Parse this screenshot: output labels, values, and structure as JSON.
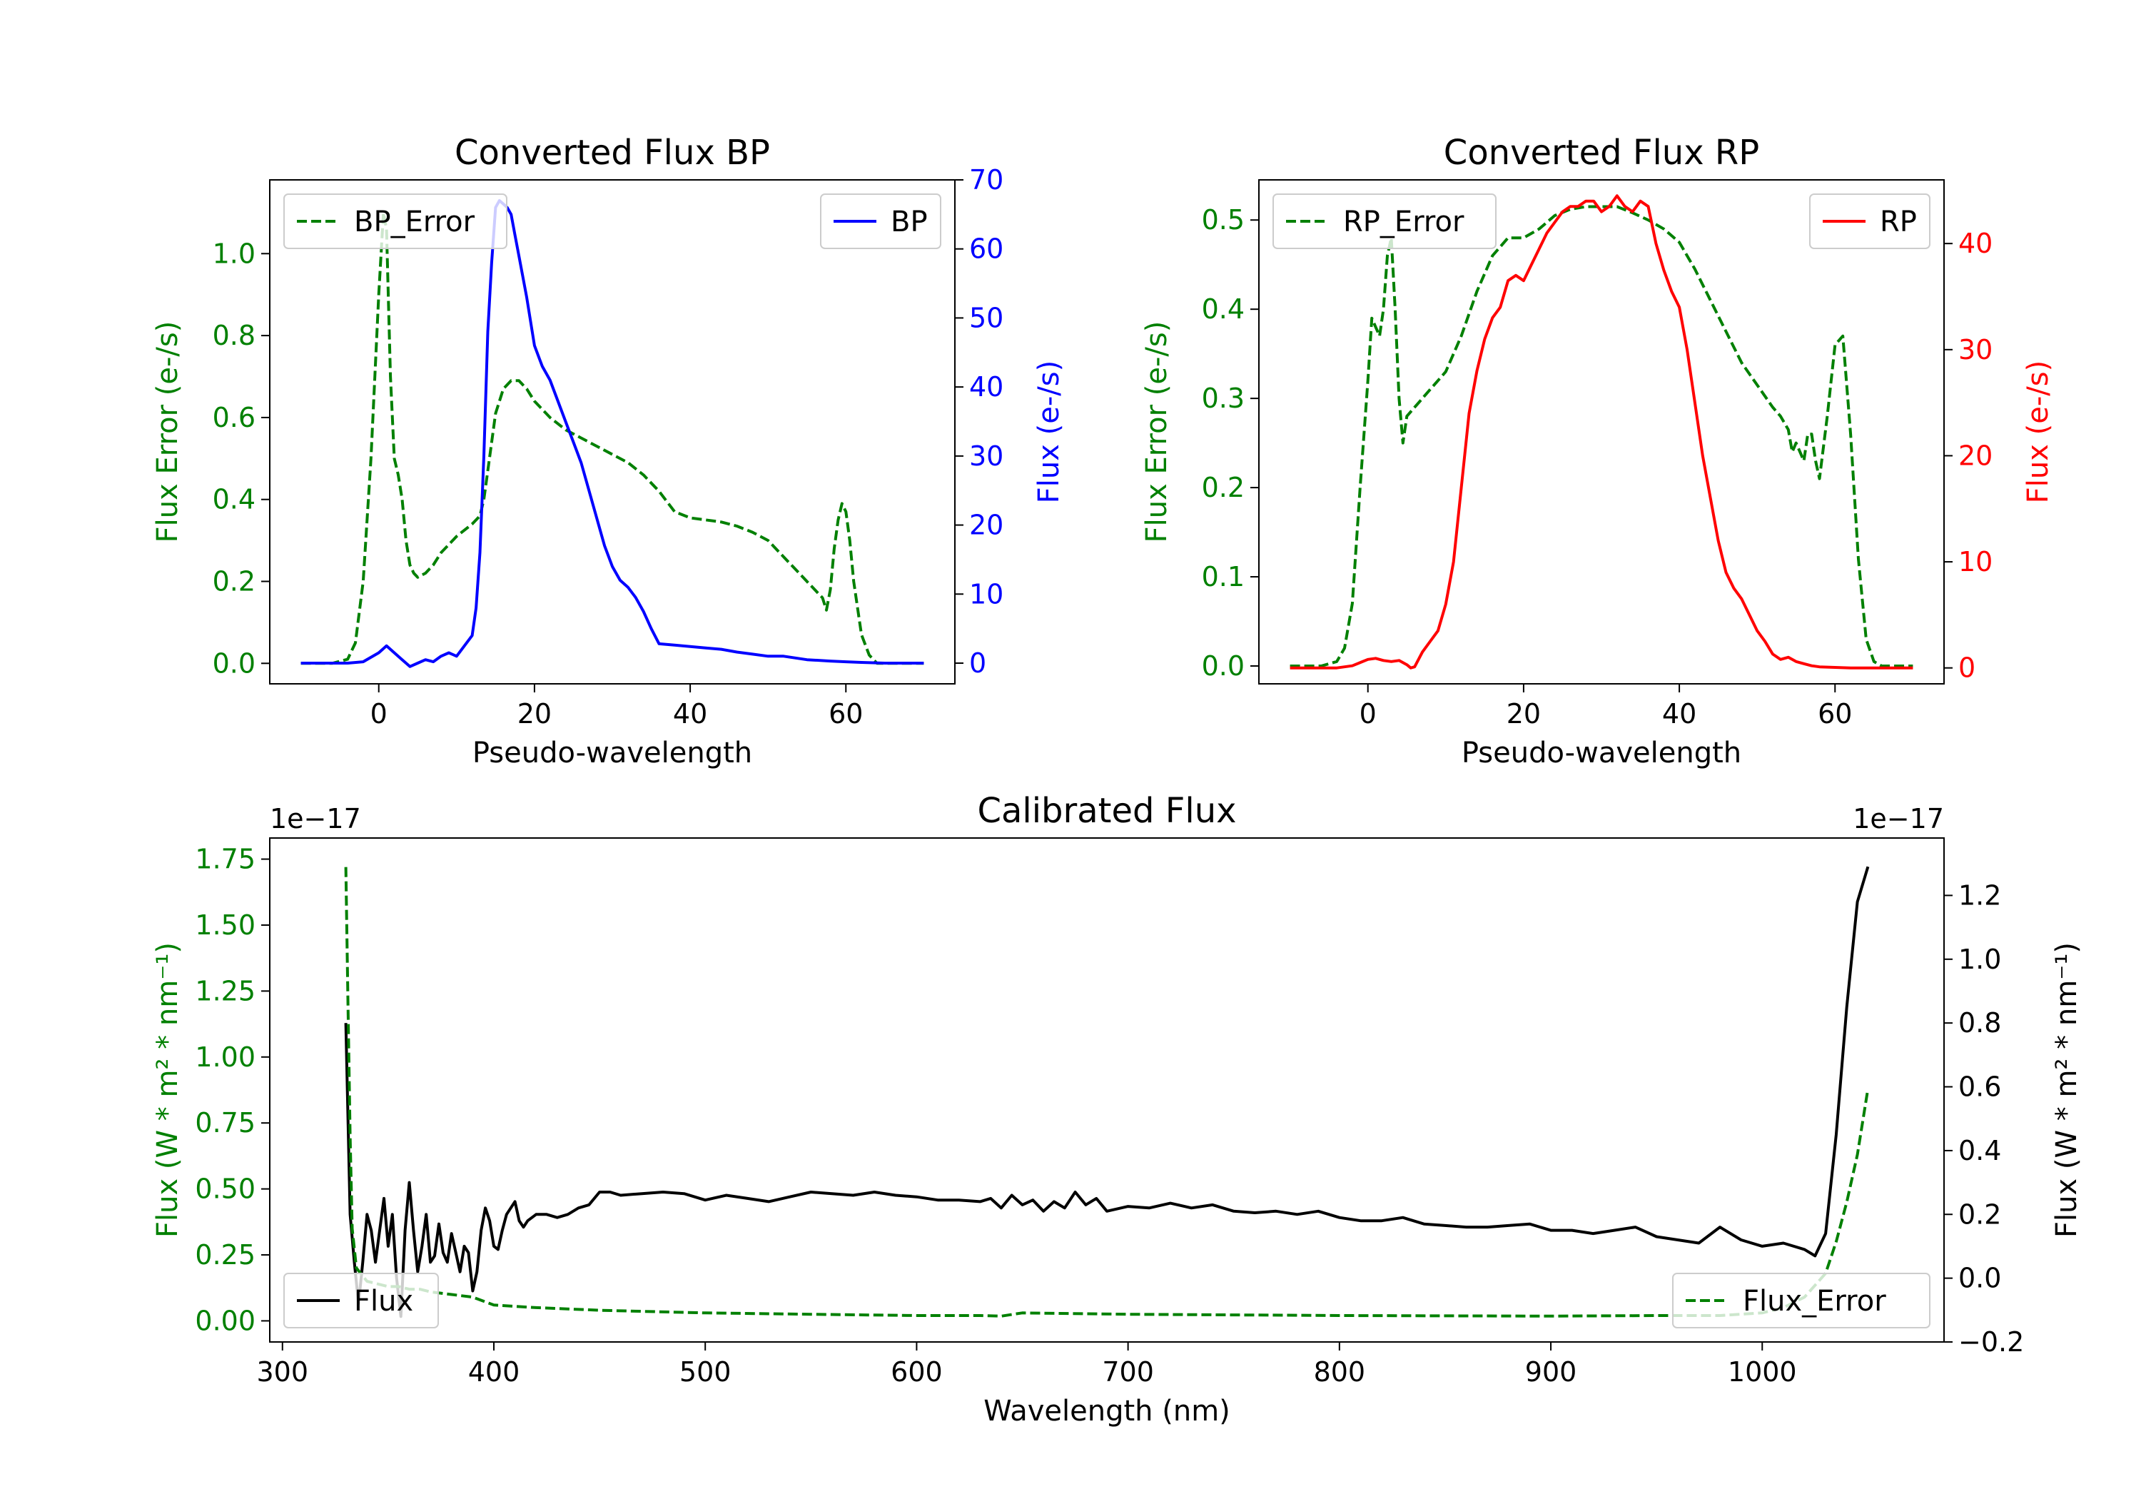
{
  "chart_data": [
    {
      "type": "line",
      "title": "Converted Flux BP",
      "xlabel": "Pseudo-wavelength",
      "xlim": [
        -14,
        74
      ],
      "xticks": [
        0,
        20,
        40,
        60
      ],
      "left_axis": {
        "label": "Flux Error (e-/s)",
        "color": "#008000",
        "ylim": [
          -0.05,
          1.18
        ],
        "ticks": [
          0.0,
          0.2,
          0.4,
          0.6,
          0.8,
          1.0
        ],
        "tick_labels": [
          "0.0",
          "0.2",
          "0.4",
          "0.6",
          "0.8",
          "1.0"
        ]
      },
      "right_axis": {
        "label": "Flux (e-/s)",
        "color": "#0000ff",
        "ylim": [
          -3,
          70
        ],
        "ticks": [
          0,
          10,
          20,
          30,
          40,
          50,
          60,
          70
        ],
        "tick_labels": [
          "0",
          "10",
          "20",
          "30",
          "40",
          "50",
          "60",
          "70"
        ]
      },
      "series": [
        {
          "name": "BP_Error",
          "axis": "left",
          "color": "#008000",
          "style": "dashed",
          "x": [
            -10,
            -6,
            -4,
            -3,
            -2,
            -1,
            0,
            0.6,
            1,
            1.5,
            2,
            2.5,
            3,
            3.5,
            4,
            4.5,
            5,
            5.5,
            6,
            7,
            8,
            10,
            12,
            13,
            13.5,
            14,
            15,
            16,
            17,
            18,
            19,
            20,
            22,
            24,
            26,
            28,
            30,
            32,
            34,
            36,
            38,
            40,
            42,
            44,
            46,
            48,
            50,
            52,
            54,
            56,
            57,
            57.5,
            58,
            58.5,
            59,
            59.5,
            60,
            60.5,
            61,
            62,
            63,
            64,
            65,
            66,
            68,
            70
          ],
          "y": [
            0.0,
            0.0,
            0.01,
            0.05,
            0.2,
            0.5,
            0.9,
            1.1,
            1.06,
            0.7,
            0.5,
            0.46,
            0.4,
            0.3,
            0.24,
            0.22,
            0.21,
            0.215,
            0.22,
            0.24,
            0.27,
            0.31,
            0.34,
            0.36,
            0.4,
            0.47,
            0.61,
            0.67,
            0.69,
            0.69,
            0.67,
            0.64,
            0.6,
            0.57,
            0.55,
            0.53,
            0.51,
            0.49,
            0.46,
            0.42,
            0.37,
            0.355,
            0.35,
            0.345,
            0.335,
            0.32,
            0.3,
            0.26,
            0.22,
            0.18,
            0.16,
            0.13,
            0.18,
            0.28,
            0.35,
            0.39,
            0.37,
            0.3,
            0.2,
            0.07,
            0.02,
            0.0,
            0.0,
            0.0,
            0.0,
            0.0
          ]
        },
        {
          "name": "BP",
          "axis": "right",
          "color": "#0000ff",
          "style": "solid",
          "x": [
            -10,
            -4,
            -2,
            0,
            1,
            2,
            3,
            4,
            5,
            6,
            7,
            8,
            9,
            10,
            11,
            12,
            12.5,
            13,
            13.5,
            14,
            14.5,
            15,
            15.5,
            16,
            16.5,
            17,
            17.5,
            18,
            19,
            20,
            21,
            22,
            23,
            24,
            25,
            26,
            27,
            28,
            29,
            30,
            31,
            32,
            33,
            34,
            35,
            36,
            38,
            40,
            42,
            44,
            46,
            48,
            50,
            52,
            55,
            58,
            60,
            62,
            65,
            70
          ],
          "y": [
            0,
            0,
            0.2,
            1.5,
            2.5,
            1.5,
            0.5,
            -0.5,
            0,
            0.5,
            0.2,
            1.0,
            1.5,
            1.0,
            2.5,
            4,
            8,
            16,
            30,
            48,
            58,
            66,
            67,
            66.5,
            66,
            65,
            62,
            59,
            53,
            46,
            43,
            41,
            38,
            35,
            32,
            29,
            25,
            21,
            17,
            14,
            12,
            11,
            9.5,
            7.5,
            5,
            2.8,
            2.6,
            2.4,
            2.2,
            2.0,
            1.6,
            1.3,
            1.0,
            1.0,
            0.5,
            0.3,
            0.2,
            0.1,
            0,
            0
          ]
        }
      ],
      "legend": [
        {
          "label": "BP_Error",
          "placement": "upper-left"
        },
        {
          "label": "BP",
          "placement": "upper-right"
        }
      ]
    },
    {
      "type": "line",
      "title": "Converted Flux RP",
      "xlabel": "Pseudo-wavelength",
      "xlim": [
        -14,
        74
      ],
      "xticks": [
        0,
        20,
        40,
        60
      ],
      "left_axis": {
        "label": "Flux Error (e-/s)",
        "color": "#008000",
        "ylim": [
          -0.02,
          0.545
        ],
        "ticks": [
          0.0,
          0.1,
          0.2,
          0.3,
          0.4,
          0.5
        ],
        "tick_labels": [
          "0.0",
          "0.1",
          "0.2",
          "0.3",
          "0.4",
          "0.5"
        ]
      },
      "right_axis": {
        "label": "Flux (e-/s)",
        "color": "#ff0000",
        "ylim": [
          -1.5,
          46
        ],
        "ticks": [
          0,
          10,
          20,
          30,
          40
        ],
        "tick_labels": [
          "0",
          "10",
          "20",
          "30",
          "40"
        ]
      },
      "series": [
        {
          "name": "RP_Error",
          "axis": "left",
          "color": "#008000",
          "style": "dashed",
          "x": [
            -10,
            -6,
            -4,
            -3,
            -2,
            -1,
            0,
            0.5,
            1,
            1.5,
            2,
            2.5,
            3,
            3.5,
            4,
            4.5,
            5,
            6,
            7,
            8,
            9,
            10,
            12,
            14,
            16,
            18,
            20,
            22,
            24,
            26,
            28,
            30,
            32,
            34,
            36,
            38,
            40,
            42,
            44,
            46,
            48,
            50,
            52,
            53,
            54,
            54.5,
            55,
            56,
            56.5,
            57,
            57.5,
            58,
            59,
            60,
            61,
            62,
            63,
            64,
            65,
            66,
            68,
            70
          ],
          "y": [
            0.0,
            0.0,
            0.005,
            0.02,
            0.07,
            0.2,
            0.32,
            0.39,
            0.38,
            0.37,
            0.4,
            0.46,
            0.48,
            0.4,
            0.3,
            0.25,
            0.28,
            0.29,
            0.3,
            0.31,
            0.32,
            0.33,
            0.37,
            0.42,
            0.46,
            0.48,
            0.48,
            0.49,
            0.505,
            0.512,
            0.515,
            0.515,
            0.515,
            0.508,
            0.5,
            0.49,
            0.475,
            0.445,
            0.41,
            0.375,
            0.34,
            0.315,
            0.29,
            0.28,
            0.265,
            0.24,
            0.25,
            0.23,
            0.26,
            0.26,
            0.23,
            0.21,
            0.28,
            0.36,
            0.37,
            0.26,
            0.12,
            0.03,
            0.005,
            0.0,
            0.0,
            0.0
          ]
        },
        {
          "name": "RP",
          "axis": "right",
          "color": "#ff0000",
          "style": "solid",
          "x": [
            -10,
            -4,
            -2,
            0,
            1,
            2,
            3,
            4,
            5,
            5.5,
            6,
            7,
            8,
            9,
            10,
            11,
            12,
            13,
            14,
            15,
            16,
            17,
            18,
            19,
            20,
            21,
            22,
            23,
            24,
            25,
            26,
            27,
            28,
            29,
            30,
            31,
            32,
            33,
            34,
            35,
            36,
            37,
            38,
            39,
            40,
            41,
            42,
            43,
            44,
            45,
            46,
            47,
            48,
            49,
            50,
            51,
            52,
            53,
            54,
            55,
            56,
            57,
            58,
            60,
            62,
            65,
            70
          ],
          "y": [
            0,
            0,
            0.2,
            0.8,
            0.9,
            0.7,
            0.6,
            0.7,
            0.3,
            0,
            0.1,
            1.5,
            2.5,
            3.5,
            6,
            10,
            17,
            24,
            28,
            31,
            33,
            34,
            36.5,
            37,
            36.5,
            38,
            39.5,
            41,
            42,
            43,
            43.5,
            43.5,
            44,
            44,
            43,
            43.5,
            44.5,
            43.5,
            43,
            44,
            43.5,
            40,
            37.5,
            35.5,
            34,
            30,
            25,
            20,
            16,
            12,
            9,
            7.5,
            6.5,
            5,
            3.5,
            2.5,
            1.3,
            0.8,
            1.0,
            0.6,
            0.4,
            0.2,
            0.1,
            0.05,
            0,
            0,
            0
          ]
        }
      ],
      "legend": [
        {
          "label": "RP_Error",
          "placement": "upper-left"
        },
        {
          "label": "RP",
          "placement": "upper-right"
        }
      ]
    },
    {
      "type": "line",
      "title": "Calibrated Flux",
      "xlabel": "Wavelength (nm)",
      "xlim": [
        294,
        1086
      ],
      "xticks": [
        300,
        400,
        500,
        600,
        700,
        800,
        900,
        1000
      ],
      "left_axis": {
        "label": "Flux (W * m² * nm⁻¹)",
        "color": "#008000",
        "offset_text": "1e−17",
        "ylim": [
          -0.08,
          1.83
        ],
        "ticks": [
          0.0,
          0.25,
          0.5,
          0.75,
          1.0,
          1.25,
          1.5,
          1.75
        ],
        "tick_labels": [
          "0.00",
          "0.25",
          "0.50",
          "0.75",
          "1.00",
          "1.25",
          "1.50",
          "1.75"
        ]
      },
      "right_axis": {
        "label": "Flux (W * m² * nm⁻¹)",
        "color": "#000000",
        "offset_text": "1e−17",
        "ylim": [
          -0.2,
          1.38
        ],
        "ticks": [
          -0.2,
          0.0,
          0.2,
          0.4,
          0.6,
          0.8,
          1.0,
          1.2
        ],
        "tick_labels": [
          "−0.2",
          "0.0",
          "0.2",
          "0.4",
          "0.6",
          "0.8",
          "1.0",
          "1.2"
        ]
      },
      "series": [
        {
          "name": "Flux",
          "axis": "right",
          "color": "#000000",
          "style": "solid",
          "x": [
            330,
            332,
            334,
            336,
            338,
            340,
            342,
            344,
            346,
            348,
            350,
            352,
            354,
            356,
            358,
            360,
            362,
            364,
            366,
            368,
            370,
            372,
            374,
            376,
            378,
            380,
            382,
            384,
            386,
            388,
            390,
            392,
            394,
            396,
            398,
            400,
            402,
            404,
            406,
            408,
            410,
            412,
            414,
            416,
            420,
            425,
            430,
            435,
            440,
            445,
            450,
            455,
            460,
            470,
            480,
            490,
            500,
            510,
            520,
            530,
            540,
            550,
            560,
            570,
            580,
            590,
            600,
            610,
            620,
            630,
            635,
            640,
            645,
            650,
            655,
            660,
            665,
            670,
            675,
            680,
            685,
            690,
            700,
            710,
            720,
            730,
            740,
            750,
            760,
            770,
            780,
            790,
            800,
            810,
            820,
            830,
            840,
            850,
            860,
            870,
            880,
            890,
            900,
            910,
            920,
            930,
            940,
            950,
            960,
            970,
            980,
            990,
            1000,
            1010,
            1020,
            1025,
            1030,
            1035,
            1040,
            1045,
            1050
          ],
          "y": [
            0.8,
            0.2,
            0.05,
            -0.08,
            0.05,
            0.2,
            0.15,
            0.05,
            0.15,
            0.25,
            0.1,
            0.2,
            0.0,
            -0.12,
            0.15,
            0.3,
            0.15,
            0.02,
            0.1,
            0.2,
            0.05,
            0.07,
            0.17,
            0.08,
            0.05,
            0.14,
            0.08,
            0.02,
            0.1,
            0.08,
            -0.04,
            0.02,
            0.15,
            0.22,
            0.18,
            0.1,
            0.09,
            0.15,
            0.2,
            0.22,
            0.24,
            0.18,
            0.16,
            0.18,
            0.2,
            0.2,
            0.19,
            0.2,
            0.22,
            0.23,
            0.27,
            0.27,
            0.26,
            0.265,
            0.27,
            0.265,
            0.245,
            0.26,
            0.25,
            0.24,
            0.255,
            0.27,
            0.265,
            0.26,
            0.27,
            0.26,
            0.255,
            0.245,
            0.245,
            0.24,
            0.25,
            0.22,
            0.26,
            0.23,
            0.245,
            0.21,
            0.24,
            0.22,
            0.27,
            0.23,
            0.25,
            0.21,
            0.225,
            0.22,
            0.235,
            0.22,
            0.23,
            0.21,
            0.205,
            0.21,
            0.2,
            0.21,
            0.19,
            0.18,
            0.18,
            0.19,
            0.17,
            0.165,
            0.16,
            0.16,
            0.165,
            0.17,
            0.15,
            0.15,
            0.14,
            0.15,
            0.16,
            0.13,
            0.12,
            0.11,
            0.16,
            0.12,
            0.1,
            0.11,
            0.09,
            0.07,
            0.14,
            0.45,
            0.85,
            1.18,
            1.29
          ]
        },
        {
          "name": "Flux_Error",
          "axis": "left",
          "color": "#008000",
          "style": "dashed",
          "x": [
            330,
            331,
            332,
            333,
            335,
            340,
            345,
            350,
            355,
            360,
            365,
            370,
            380,
            390,
            400,
            420,
            450,
            500,
            550,
            600,
            630,
            640,
            650,
            700,
            800,
            900,
            950,
            980,
            1000,
            1010,
            1020,
            1030,
            1035,
            1040,
            1045,
            1050
          ],
          "y": [
            1.72,
            1.2,
            0.7,
            0.35,
            0.2,
            0.15,
            0.14,
            0.13,
            0.13,
            0.12,
            0.12,
            0.11,
            0.1,
            0.09,
            0.06,
            0.05,
            0.04,
            0.03,
            0.025,
            0.02,
            0.02,
            0.018,
            0.03,
            0.025,
            0.02,
            0.018,
            0.02,
            0.02,
            0.03,
            0.05,
            0.09,
            0.18,
            0.3,
            0.45,
            0.63,
            0.88
          ]
        }
      ],
      "legend": [
        {
          "label": "Flux",
          "placement": "lower-left"
        },
        {
          "label": "Flux_Error",
          "placement": "lower-right"
        }
      ]
    }
  ]
}
